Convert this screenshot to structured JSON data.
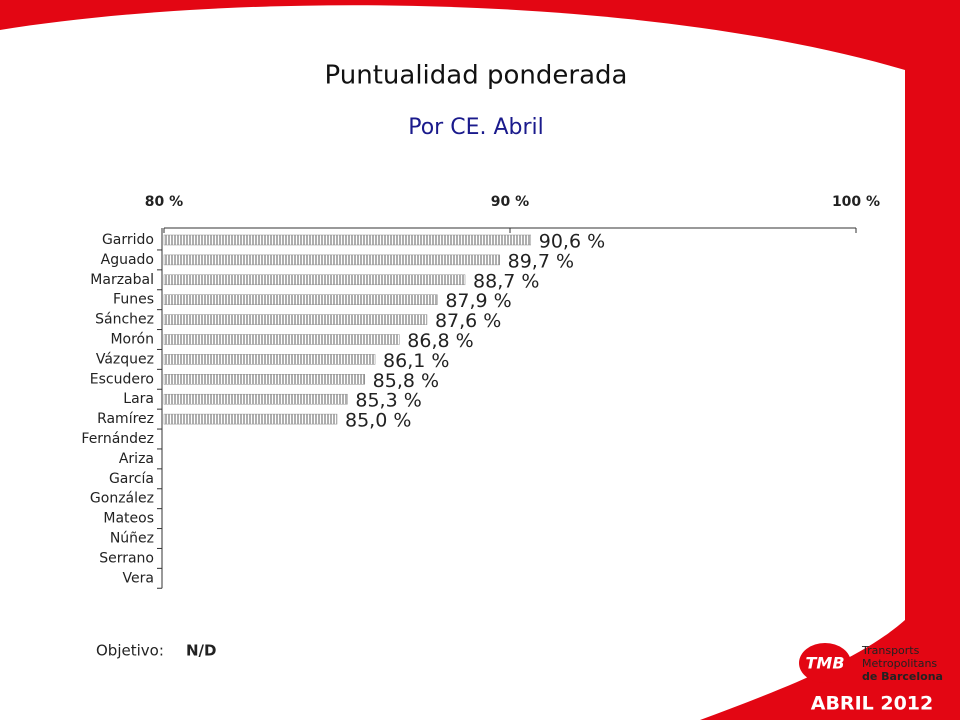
{
  "chart_data": {
    "type": "bar",
    "orientation": "horizontal",
    "title": "Puntualidad ponderada",
    "subtitle": "Por CE. Abril",
    "categories": [
      "Garrido",
      "Aguado",
      "Marzabal",
      "Funes",
      "Sánchez",
      "Morón",
      "Vázquez",
      "Escudero",
      "Lara",
      "Ramírez",
      "Fernández",
      "Ariza",
      "García",
      "González",
      "Mateos",
      "Núñez",
      "Serrano",
      "Vera"
    ],
    "values": [
      90.6,
      89.7,
      88.7,
      87.9,
      87.6,
      86.8,
      86.1,
      85.8,
      85.3,
      85.0,
      null,
      null,
      null,
      null,
      null,
      null,
      null,
      null
    ],
    "value_labels": [
      "90,6 %",
      "89,7 %",
      "88,7 %",
      "87,9 %",
      "87,6 %",
      "86,8 %",
      "86,1 %",
      "85,8 %",
      "85,3 %",
      "85,0 %",
      null,
      null,
      null,
      null,
      null,
      null,
      null,
      null
    ],
    "color": "#8c8c8c",
    "xlim": [
      80,
      100
    ],
    "xticks": [
      {
        "value": 80,
        "label": "80 %"
      },
      {
        "value": 90,
        "label": "90 %"
      },
      {
        "value": 100,
        "label": "100 %"
      }
    ]
  },
  "objective": {
    "label": "Objetivo:",
    "value": "N/D"
  },
  "brand": {
    "logo": "TMB",
    "line1": "Transports",
    "line2": "Metropolitans",
    "line3": "de Barcelona"
  },
  "date": "ABRIL 2012"
}
